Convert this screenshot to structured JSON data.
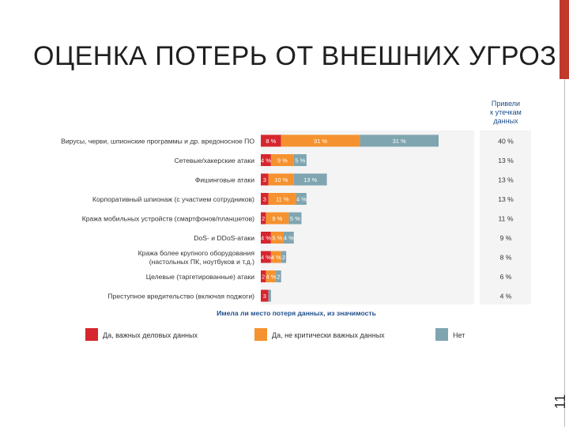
{
  "slide": {
    "title": "ОЦЕНКА ПОТЕРЬ ОТ ВНЕШНИХ УГРОЗ",
    "page_number": "11",
    "accent_color": "#c0392b"
  },
  "chart_data": {
    "type": "bar",
    "orientation": "horizontal",
    "stacked": true,
    "right_header_lines": [
      "Привели",
      "к утечкам",
      "данных"
    ],
    "xlabel": "Имела ли место потеря данных, из значимость",
    "categories": [
      [
        "Вирусы, черви, шпионские программы и др. вредоносное ПО"
      ],
      [
        "Сетевые/хакерские атаки"
      ],
      [
        "Фишинговые атаки"
      ],
      [
        "Корпоративный шпионаж (с участием сотрудников)"
      ],
      [
        "Кража мобильных устройств (смартфонов/планшетов)"
      ],
      [
        "DoS- и DDoS-атаки"
      ],
      [
        "Кража более крупного оборудования",
        "(настольных ПК, ноутбуков и т.д.)"
      ],
      [
        "Целевые (таргетированные) атаки"
      ],
      [
        "Преступное вредительство (включая поджоги)"
      ]
    ],
    "series": [
      {
        "name": "Да, важных деловых данных",
        "color": "#d6262e",
        "values": [
          8,
          4,
          3,
          3,
          2,
          4,
          4,
          2,
          3
        ],
        "labels": [
          "8 %",
          "4 %",
          "3",
          "3",
          "2",
          "4 %",
          "4 %",
          "2",
          "3"
        ]
      },
      {
        "name": "Да, не критически важных данных",
        "color": "#f5922f",
        "values": [
          31,
          9,
          10,
          11,
          9,
          5,
          4,
          4,
          0
        ],
        "labels": [
          "31 %",
          "9 %",
          "10 %",
          "11 %",
          "9 %",
          "5 %",
          "4 %",
          "4 %",
          ""
        ]
      },
      {
        "name": "Нет",
        "color": "#7fa5b0",
        "values": [
          31,
          5,
          13,
          4,
          5,
          4,
          2,
          2,
          1
        ],
        "labels": [
          "31 %",
          "5 %",
          "13 %",
          "4 %",
          "5 %",
          "4 %",
          "2",
          "2",
          ""
        ]
      }
    ],
    "leak_totals": [
      "40 %",
      "13 %",
      "13 %",
      "13 %",
      "11 %",
      "9 %",
      "8 %",
      "6 %",
      "4 %"
    ],
    "xlim": [
      0,
      84
    ],
    "grid": false,
    "legend_position": "bottom"
  }
}
